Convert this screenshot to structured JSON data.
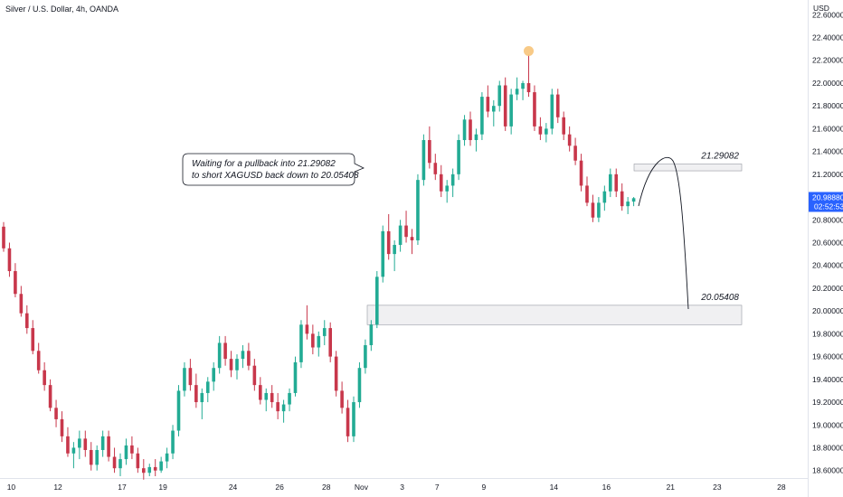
{
  "header": {
    "title": "Silver / U.S. Dollar, 4h, OANDA",
    "currency": "USD"
  },
  "colors": {
    "up": "#22ab94",
    "down": "#c8374b",
    "price_tag": "#2962ff",
    "zone_fill": "#f0f0f2",
    "zone_border": "#9598a1",
    "peak_marker": "#f7c47a"
  },
  "chart_data": {
    "type": "candlestick",
    "symbol": "XAGUSD",
    "ylim": [
      18.55,
      22.65
    ],
    "y_ticks": [
      "18.60000",
      "18.80000",
      "19.00000",
      "19.20000",
      "19.40000",
      "19.60000",
      "19.80000",
      "20.00000",
      "20.20000",
      "20.40000",
      "20.60000",
      "20.80000",
      "21.00000",
      "21.20000",
      "21.40000",
      "21.60000",
      "21.80000",
      "22.00000",
      "22.20000",
      "22.40000",
      "22.60000"
    ],
    "x_ticks": [
      "10",
      "12",
      "17",
      "19",
      "24",
      "26",
      "28",
      "Nov",
      "3",
      "7",
      "9",
      "14",
      "16",
      "21",
      "23",
      "28"
    ],
    "last_price": "20.98880",
    "countdown": "02:52:53",
    "candles": [
      [
        20.74,
        20.78,
        20.52,
        20.55
      ],
      [
        20.55,
        20.6,
        20.3,
        20.35
      ],
      [
        20.35,
        20.42,
        20.12,
        20.15
      ],
      [
        20.15,
        20.22,
        19.95,
        19.98
      ],
      [
        19.98,
        20.05,
        19.8,
        19.85
      ],
      [
        19.85,
        19.92,
        19.62,
        19.65
      ],
      [
        19.65,
        19.72,
        19.45,
        19.48
      ],
      [
        19.48,
        19.55,
        19.3,
        19.35
      ],
      [
        19.35,
        19.4,
        19.12,
        19.15
      ],
      [
        19.15,
        19.22,
        18.98,
        19.05
      ],
      [
        19.05,
        19.12,
        18.85,
        18.9
      ],
      [
        18.9,
        18.98,
        18.72,
        18.75
      ],
      [
        18.75,
        18.85,
        18.62,
        18.8
      ],
      [
        18.8,
        18.95,
        18.7,
        18.88
      ],
      [
        18.88,
        18.95,
        18.72,
        18.78
      ],
      [
        18.78,
        18.85,
        18.6,
        18.65
      ],
      [
        18.65,
        18.82,
        18.6,
        18.78
      ],
      [
        18.78,
        18.95,
        18.72,
        18.9
      ],
      [
        18.9,
        18.95,
        18.68,
        18.72
      ],
      [
        18.72,
        18.8,
        18.58,
        18.62
      ],
      [
        18.62,
        18.75,
        18.55,
        18.7
      ],
      [
        18.7,
        18.88,
        18.65,
        18.82
      ],
      [
        18.82,
        18.9,
        18.7,
        18.75
      ],
      [
        18.75,
        18.8,
        18.58,
        18.62
      ],
      [
        18.62,
        18.7,
        18.52,
        18.58
      ],
      [
        18.58,
        18.66,
        18.55,
        18.63
      ],
      [
        18.63,
        18.7,
        18.55,
        18.6
      ],
      [
        18.6,
        18.72,
        18.58,
        18.68
      ],
      [
        18.68,
        18.8,
        18.62,
        18.75
      ],
      [
        18.75,
        19.0,
        18.7,
        18.95
      ],
      [
        18.95,
        19.35,
        18.9,
        19.3
      ],
      [
        19.3,
        19.55,
        19.25,
        19.5
      ],
      [
        19.5,
        19.58,
        19.3,
        19.35
      ],
      [
        19.35,
        19.45,
        19.15,
        19.2
      ],
      [
        19.2,
        19.32,
        19.05,
        19.28
      ],
      [
        19.28,
        19.42,
        19.2,
        19.38
      ],
      [
        19.38,
        19.55,
        19.3,
        19.5
      ],
      [
        19.5,
        19.78,
        19.45,
        19.72
      ],
      [
        19.72,
        19.78,
        19.52,
        19.58
      ],
      [
        19.58,
        19.65,
        19.42,
        19.48
      ],
      [
        19.48,
        19.62,
        19.4,
        19.58
      ],
      [
        19.58,
        19.7,
        19.5,
        19.65
      ],
      [
        19.65,
        19.72,
        19.48,
        19.52
      ],
      [
        19.52,
        19.58,
        19.3,
        19.35
      ],
      [
        19.35,
        19.42,
        19.18,
        19.22
      ],
      [
        19.22,
        19.32,
        19.12,
        19.28
      ],
      [
        19.28,
        19.35,
        19.15,
        19.2
      ],
      [
        19.2,
        19.28,
        19.05,
        19.12
      ],
      [
        19.12,
        19.22,
        19.02,
        19.18
      ],
      [
        19.18,
        19.32,
        19.12,
        19.28
      ],
      [
        19.28,
        19.6,
        19.25,
        19.55
      ],
      [
        19.55,
        19.92,
        19.5,
        19.88
      ],
      [
        19.88,
        20.05,
        19.75,
        19.8
      ],
      [
        19.8,
        19.88,
        19.62,
        19.68
      ],
      [
        19.68,
        19.82,
        19.6,
        19.78
      ],
      [
        19.78,
        19.92,
        19.7,
        19.85
      ],
      [
        19.85,
        19.9,
        19.55,
        19.6
      ],
      [
        19.6,
        19.65,
        19.25,
        19.3
      ],
      [
        19.3,
        19.38,
        19.1,
        19.15
      ],
      [
        19.15,
        19.22,
        18.85,
        18.9
      ],
      [
        18.9,
        19.25,
        18.85,
        19.2
      ],
      [
        19.2,
        19.55,
        19.15,
        19.5
      ],
      [
        19.5,
        19.75,
        19.45,
        19.7
      ],
      [
        19.7,
        19.92,
        19.65,
        19.88
      ],
      [
        19.88,
        20.35,
        19.85,
        20.3
      ],
      [
        20.3,
        20.75,
        20.25,
        20.7
      ],
      [
        20.7,
        20.85,
        20.45,
        20.5
      ],
      [
        20.5,
        20.62,
        20.35,
        20.58
      ],
      [
        20.58,
        20.8,
        20.52,
        20.75
      ],
      [
        20.75,
        20.88,
        20.6,
        20.65
      ],
      [
        20.65,
        20.72,
        20.5,
        20.62
      ],
      [
        20.62,
        21.2,
        20.58,
        21.15
      ],
      [
        21.15,
        21.55,
        21.1,
        21.5
      ],
      [
        21.5,
        21.62,
        21.25,
        21.3
      ],
      [
        21.3,
        21.38,
        21.15,
        21.2
      ],
      [
        21.2,
        21.28,
        21.0,
        21.05
      ],
      [
        21.05,
        21.15,
        20.95,
        21.1
      ],
      [
        21.1,
        21.25,
        21.0,
        21.2
      ],
      [
        21.2,
        21.55,
        21.15,
        21.5
      ],
      [
        21.5,
        21.72,
        21.45,
        21.68
      ],
      [
        21.68,
        21.75,
        21.45,
        21.5
      ],
      [
        21.5,
        21.6,
        21.4,
        21.55
      ],
      [
        21.55,
        21.92,
        21.5,
        21.88
      ],
      [
        21.88,
        21.98,
        21.7,
        21.75
      ],
      [
        21.75,
        21.85,
        21.62,
        21.8
      ],
      [
        21.8,
        22.02,
        21.75,
        21.98
      ],
      [
        21.98,
        22.05,
        21.58,
        21.62
      ],
      [
        21.62,
        21.95,
        21.55,
        21.9
      ],
      [
        21.9,
        22.05,
        21.85,
        21.95
      ],
      [
        21.95,
        22.02,
        21.85,
        22.0
      ],
      [
        22.0,
        22.25,
        21.88,
        21.92
      ],
      [
        21.92,
        21.98,
        21.58,
        21.62
      ],
      [
        21.62,
        21.7,
        21.5,
        21.55
      ],
      [
        21.55,
        21.65,
        21.48,
        21.6
      ],
      [
        21.6,
        21.95,
        21.55,
        21.9
      ],
      [
        21.9,
        21.95,
        21.65,
        21.7
      ],
      [
        21.7,
        21.75,
        21.5,
        21.55
      ],
      [
        21.55,
        21.62,
        21.4,
        21.45
      ],
      [
        21.45,
        21.52,
        21.28,
        21.32
      ],
      [
        21.32,
        21.38,
        21.05,
        21.1
      ],
      [
        21.1,
        21.18,
        20.92,
        20.95
      ],
      [
        20.95,
        21.02,
        20.78,
        20.82
      ],
      [
        20.82,
        21.0,
        20.78,
        20.95
      ],
      [
        20.95,
        21.1,
        20.88,
        21.05
      ],
      [
        21.05,
        21.25,
        21.0,
        21.2
      ],
      [
        21.2,
        21.25,
        21.0,
        21.05
      ],
      [
        21.05,
        21.12,
        20.88,
        20.92
      ],
      [
        20.92,
        21.0,
        20.85,
        20.96
      ],
      [
        20.96,
        21.0,
        20.92,
        20.99
      ]
    ],
    "zones": [
      {
        "label": "21.29082",
        "top": 21.29,
        "bottom": 21.23
      },
      {
        "label": "20.05408",
        "top": 20.05,
        "bottom": 19.88
      }
    ],
    "annotation": [
      "Waiting for a pullback into 21.29082",
      "to short XAGUSD back down to 20.05408"
    ],
    "peak_value": 22.25
  }
}
